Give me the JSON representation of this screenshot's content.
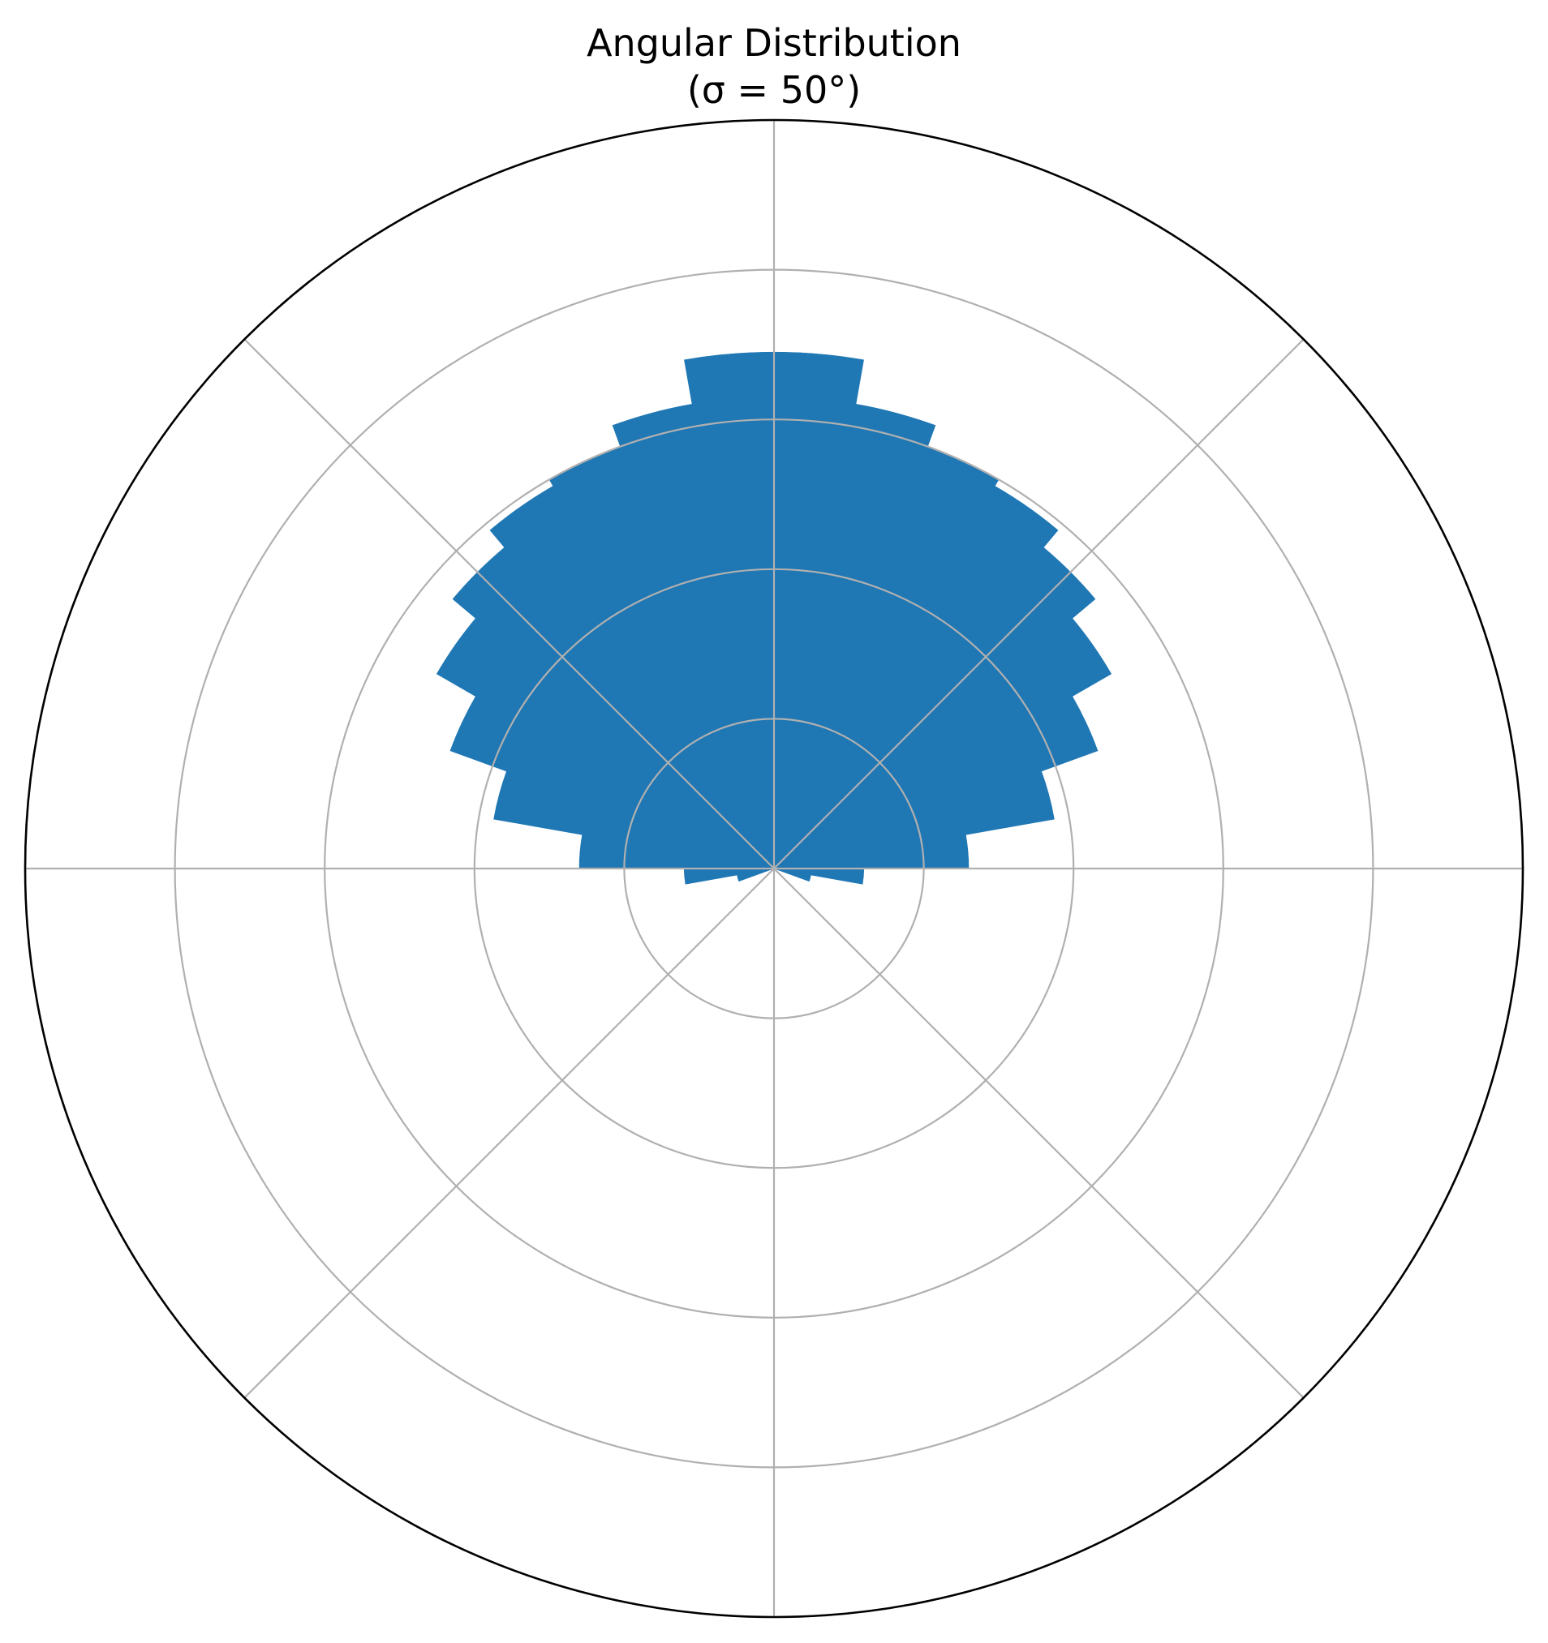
{
  "chart_data": {
    "type": "bar",
    "projection": "polar",
    "title": "Angular Distribution",
    "subtitle": "(σ = 50°)",
    "theta_zero_location": "top",
    "theta_direction": "clockwise",
    "bin_width_deg": 10,
    "bin_centers_deg": [
      -175,
      -165,
      -155,
      -145,
      -135,
      -125,
      -115,
      -105,
      -95,
      -85,
      -75,
      -65,
      -55,
      -45,
      -35,
      -25,
      -15,
      -5,
      5,
      15,
      25,
      35,
      45,
      55,
      65,
      75,
      85,
      95,
      105,
      115,
      125,
      135,
      145,
      155,
      165,
      175
    ],
    "values": [
      0,
      0,
      0,
      0,
      0,
      0,
      0,
      0.05,
      0.12,
      0.26,
      0.38,
      0.46,
      0.52,
      0.56,
      0.59,
      0.6,
      0.63,
      0.69,
      0.69,
      0.63,
      0.6,
      0.59,
      0.56,
      0.52,
      0.46,
      0.38,
      0.26,
      0.12,
      0.05,
      0,
      0,
      0,
      0,
      0,
      0,
      0
    ],
    "rlim": [
      0,
      1
    ],
    "radial_gridlines": [
      0.2,
      0.4,
      0.6,
      0.8,
      1.0
    ],
    "angular_gridlines_deg": [
      0,
      45,
      90,
      135,
      180,
      225,
      270,
      315
    ],
    "grid": true,
    "tick_labels_visible": false,
    "bar_color": "#1f77b4",
    "grid_color": "#b0b0b0",
    "outline_color": "#000000"
  }
}
